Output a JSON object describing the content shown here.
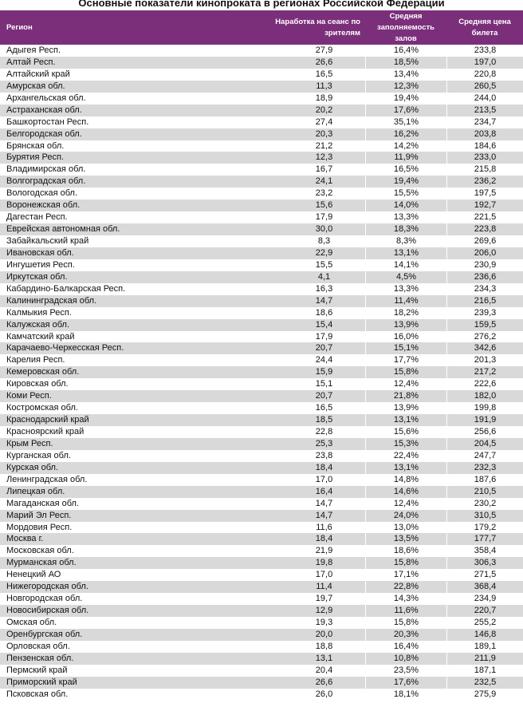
{
  "title": "Основные показатели кинопроката в регионах Российской Федерации",
  "header_color": "#7b2f7b",
  "columns": [
    "Регион",
    "Наработка на сеанс по зрителям",
    "Средняя заполняемость залов",
    "Средняя цена билета"
  ],
  "rows": [
    [
      "Адыгея Респ.",
      "27,9",
      "16,4%",
      "233,8"
    ],
    [
      "Алтай Респ.",
      "26,6",
      "18,5%",
      "197,0"
    ],
    [
      "Алтайский край",
      "16,5",
      "13,4%",
      "220,8"
    ],
    [
      "Амурская обл.",
      "11,3",
      "12,3%",
      "260,5"
    ],
    [
      "Архангельская обл.",
      "18,9",
      "19,4%",
      "244,0"
    ],
    [
      "Астраханская обл.",
      "20,2",
      "17,6%",
      "213,5"
    ],
    [
      "Башкортостан Респ.",
      "27,4",
      "35,1%",
      "234,7"
    ],
    [
      "Белгородская обл.",
      "20,3",
      "16,2%",
      "203,8"
    ],
    [
      "Брянская обл.",
      "21,2",
      "14,2%",
      "184,6"
    ],
    [
      "Бурятия Респ.",
      "12,3",
      "11,9%",
      "233,0"
    ],
    [
      "Владимирская обл.",
      "16,7",
      "16,5%",
      "215,8"
    ],
    [
      "Волгоградская обл.",
      "24,1",
      "19,4%",
      "236,2"
    ],
    [
      "Вологодская обл.",
      "23,2",
      "15,5%",
      "197,5"
    ],
    [
      "Воронежская обл.",
      "15,6",
      "14,0%",
      "192,7"
    ],
    [
      "Дагестан Респ.",
      "17,9",
      "13,3%",
      "221,5"
    ],
    [
      "Еврейская автономная обл.",
      "30,0",
      "18,3%",
      "223,8"
    ],
    [
      "Забайкальский край",
      "8,3",
      "8,3%",
      "269,6"
    ],
    [
      "Ивановская обл.",
      "22,9",
      "13,1%",
      "206,0"
    ],
    [
      "Ингушетия Респ.",
      "15,5",
      "14,1%",
      "230,9"
    ],
    [
      "Иркутская обл.",
      "4,1",
      "4,5%",
      "236,6"
    ],
    [
      "Кабардино-Балкарская Респ.",
      "16,3",
      "13,3%",
      "234,3"
    ],
    [
      "Калининградская обл.",
      "14,7",
      "11,4%",
      "216,5"
    ],
    [
      "Калмыкия Респ.",
      "18,6",
      "18,2%",
      "239,3"
    ],
    [
      "Калужская обл.",
      "15,4",
      "13,9%",
      "159,5"
    ],
    [
      "Камчатский край",
      "17,9",
      "16,0%",
      "276,2"
    ],
    [
      "Карачаево-Черкесская Респ.",
      "20,7",
      "15,1%",
      "342,6"
    ],
    [
      "Карелия Респ.",
      "24,4",
      "17,7%",
      "201,3"
    ],
    [
      "Кемеровская обл.",
      "15,9",
      "15,8%",
      "217,2"
    ],
    [
      "Кировская обл.",
      "15,1",
      "12,4%",
      "222,6"
    ],
    [
      "Коми Респ.",
      "20,7",
      "21,8%",
      "182,0"
    ],
    [
      "Костромская обл.",
      "16,5",
      "13,9%",
      "199,8"
    ],
    [
      "Краснодарский край",
      "18,5",
      "13,1%",
      "191,9"
    ],
    [
      "Красноярский край",
      "22,8",
      "15,6%",
      "256,6"
    ],
    [
      "Крым Респ.",
      "25,3",
      "15,3%",
      "204,5"
    ],
    [
      "Курганская обл.",
      "23,8",
      "22,4%",
      "247,7"
    ],
    [
      "Курская обл.",
      "18,4",
      "13,1%",
      "232,3"
    ],
    [
      "Ленинградская обл.",
      "17,0",
      "14,8%",
      "187,6"
    ],
    [
      "Липецкая обл.",
      "16,4",
      "14,6%",
      "210,5"
    ],
    [
      "Магаданская обл.",
      "14,7",
      "12,4%",
      "230,2"
    ],
    [
      "Марий Эл Респ.",
      "14,7",
      "24,0%",
      "310,5"
    ],
    [
      "Мордовия Респ.",
      "11,6",
      "13,0%",
      "179,2"
    ],
    [
      "Москва г.",
      "18,4",
      "13,5%",
      "177,7"
    ],
    [
      "Московская обл.",
      "21,9",
      "18,6%",
      "358,4"
    ],
    [
      "Мурманская обл.",
      "19,8",
      "15,8%",
      "306,3"
    ],
    [
      "Ненецкий АО",
      "17,0",
      "17,1%",
      "271,5"
    ],
    [
      "Нижегородская обл.",
      "11,4",
      "22,8%",
      "368,4"
    ],
    [
      "Новгородская обл.",
      "19,7",
      "14,3%",
      "234,9"
    ],
    [
      "Новосибирская обл.",
      "12,9",
      "11,6%",
      "220,7"
    ],
    [
      "Омская обл.",
      "19,3",
      "15,8%",
      "255,2"
    ],
    [
      "Оренбургская обл.",
      "20,0",
      "20,3%",
      "146,8"
    ],
    [
      "Орловская обл.",
      "18,8",
      "16,4%",
      "189,1"
    ],
    [
      "Пензенская обл.",
      "13,1",
      "10,8%",
      "211,9"
    ],
    [
      "Пермский край",
      "20,4",
      "23,5%",
      "187,1"
    ],
    [
      "Приморский край",
      "26,6",
      "17,6%",
      "232,5"
    ],
    [
      "Псковская обл.",
      "26,0",
      "18,1%",
      "275,9"
    ]
  ]
}
